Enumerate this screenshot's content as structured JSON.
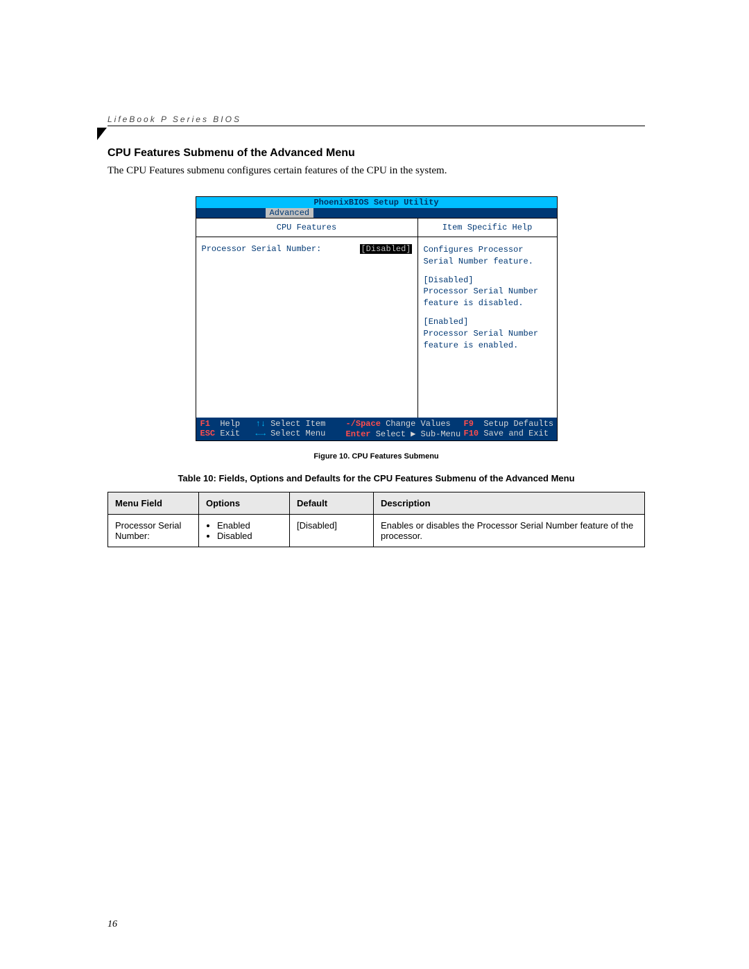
{
  "header_text": "LifeBook P Series BIOS",
  "section_title": "CPU Features Submenu of the Advanced Menu",
  "intro_text": "The CPU Features submenu configures certain features of the CPU in the system.",
  "bios": {
    "title": "PhoenixBIOS Setup Utility",
    "active_tab": "Advanced",
    "left_panel_title": "CPU Features",
    "right_panel_title": "Item Specific Help",
    "field_label": "Processor Serial Number:",
    "field_value": "[Disabled]",
    "help_block1": "Configures Processor Serial Number feature.",
    "help_block2a": "[Disabled]",
    "help_block2b": "Processor Serial Number feature is disabled.",
    "help_block3a": "[Enabled]",
    "help_block3b": "Processor Serial Number feature is enabled.",
    "footer": {
      "f1": "F1",
      "help": "Help",
      "udarrow": "↑↓",
      "select_item": "Select Item",
      "minus_space": "-/Space",
      "change_values": "Change Values",
      "f9": "F9",
      "setup_defaults": "Setup Defaults",
      "esc": "ESC",
      "exit": "Exit",
      "lrarrow": "←→",
      "select_menu": "Select Menu",
      "enter": "Enter",
      "select_sub": "Select ▶ Sub-Menu",
      "f10": "F10",
      "save_exit": "Save and Exit"
    }
  },
  "figure_caption": "Figure 10.  CPU Features Submenu",
  "table_caption": "Table 10: Fields, Options and Defaults for the CPU Features Submenu of the Advanced Menu",
  "table": {
    "headers": {
      "menu": "Menu Field",
      "options": "Options",
      "default": "Default",
      "desc": "Description"
    },
    "row": {
      "menu": "Processor Serial Number:",
      "opt1": "Enabled",
      "opt2": "Disabled",
      "default": "[Disabled]",
      "desc": "Enables or disables the Processor Serial Number feature of the processor."
    }
  },
  "page_number": "16"
}
